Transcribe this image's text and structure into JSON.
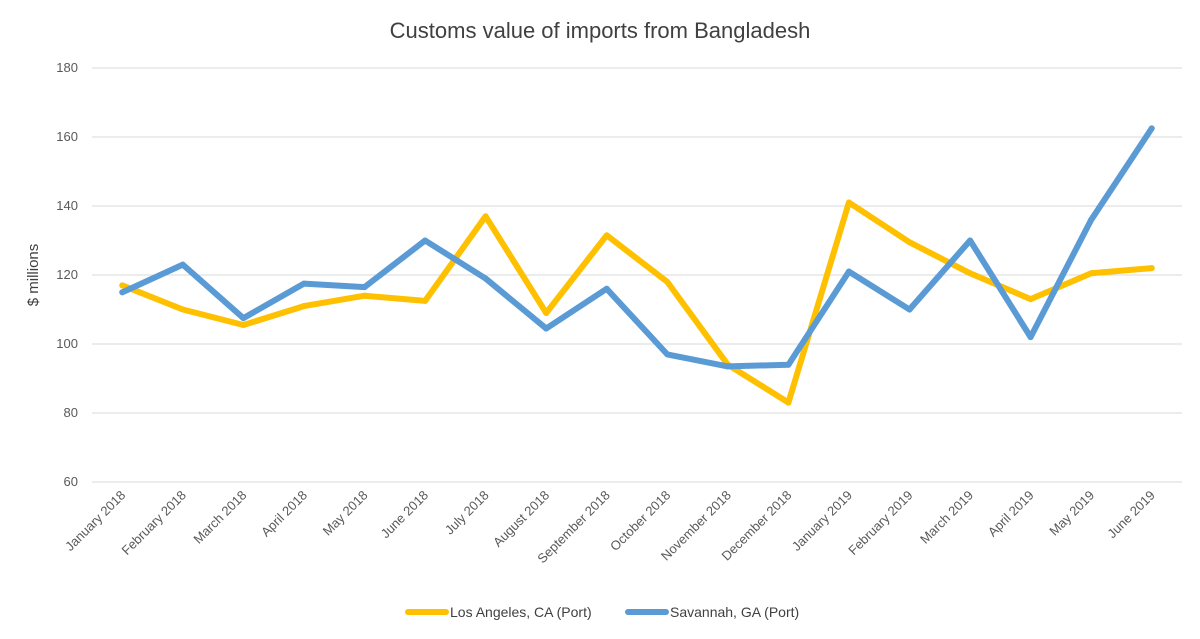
{
  "chart_data": {
    "type": "line",
    "title": "Customs value of imports from Bangladesh",
    "xlabel": "",
    "ylabel": "$ millions",
    "ylim": [
      60,
      180
    ],
    "yticks": [
      60,
      80,
      100,
      120,
      140,
      160,
      180
    ],
    "grid": "horizontal",
    "legend_position": "bottom",
    "categories": [
      "January 2018",
      "February 2018",
      "March 2018",
      "April 2018",
      "May 2018",
      "June 2018",
      "July 2018",
      "August 2018",
      "September 2018",
      "October 2018",
      "November 2018",
      "December 2018",
      "January 2019",
      "February 2019",
      "March 2019",
      "April 2019",
      "May 2019",
      "June 2019"
    ],
    "series": [
      {
        "name": "Los Angeles, CA (Port)",
        "color": "#FFC000",
        "values": [
          117,
          110,
          105.5,
          111,
          114,
          112.5,
          137,
          109,
          131.5,
          118,
          94,
          83,
          141,
          129.5,
          120.5,
          113,
          120.5,
          122
        ]
      },
      {
        "name": "Savannah, GA (Port)",
        "color": "#5B9BD5",
        "values": [
          115,
          123,
          107.5,
          117.5,
          116.5,
          130,
          119,
          104.5,
          116,
          97,
          93.5,
          94,
          121,
          110,
          130,
          102,
          136,
          162.5
        ]
      }
    ]
  }
}
